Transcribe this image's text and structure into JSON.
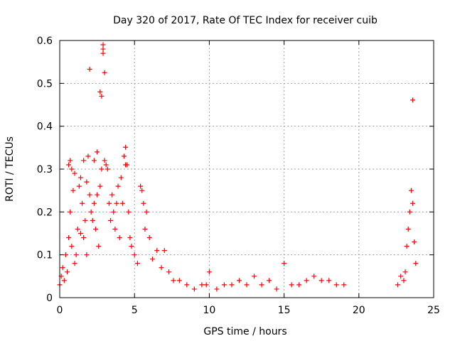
{
  "chart_data": {
    "type": "scatter",
    "title": "Day 320 of 2017, Rate Of TEC Index for receiver cuib",
    "xlabel": "GPS time / hours",
    "ylabel": "ROTI / TECUs",
    "xlim": [
      0,
      25
    ],
    "ylim": [
      0,
      0.6
    ],
    "x_ticks": [
      0,
      5,
      10,
      15,
      20,
      25
    ],
    "y_ticks": [
      0,
      0.1,
      0.2,
      0.3,
      0.4,
      0.5,
      0.6
    ],
    "x_tick_labels": [
      "0",
      "5",
      "10",
      "15",
      "20",
      "25"
    ],
    "y_tick_labels": [
      "0",
      "0.1",
      "0.2",
      "0.3",
      "0.4",
      "0.5",
      "0.6"
    ],
    "grid": true,
    "marker": "+",
    "color": "#ff0000",
    "series": [
      {
        "values": [
          [
            0.0,
            0.03
          ],
          [
            0.1,
            0.05
          ],
          [
            0.2,
            0.07
          ],
          [
            0.3,
            0.04
          ],
          [
            0.4,
            0.1
          ],
          [
            0.5,
            0.06
          ],
          [
            0.6,
            0.14
          ],
          [
            0.6,
            0.31
          ],
          [
            0.7,
            0.32
          ],
          [
            0.7,
            0.2
          ],
          [
            0.8,
            0.3
          ],
          [
            0.8,
            0.12
          ],
          [
            0.9,
            0.25
          ],
          [
            1.0,
            0.29
          ],
          [
            1.0,
            0.08
          ],
          [
            1.1,
            0.1
          ],
          [
            1.2,
            0.16
          ],
          [
            1.3,
            0.26
          ],
          [
            1.4,
            0.28
          ],
          [
            1.4,
            0.15
          ],
          [
            1.5,
            0.22
          ],
          [
            1.6,
            0.14
          ],
          [
            1.6,
            0.32
          ],
          [
            1.7,
            0.18
          ],
          [
            1.8,
            0.27
          ],
          [
            1.8,
            0.1
          ],
          [
            1.9,
            0.33
          ],
          [
            2.0,
            0.533
          ],
          [
            2.0,
            0.24
          ],
          [
            2.1,
            0.2
          ],
          [
            2.2,
            0.18
          ],
          [
            2.3,
            0.22
          ],
          [
            2.3,
            0.32
          ],
          [
            2.4,
            0.16
          ],
          [
            2.5,
            0.24
          ],
          [
            2.5,
            0.34
          ],
          [
            2.6,
            0.12
          ],
          [
            2.7,
            0.26
          ],
          [
            2.7,
            0.48
          ],
          [
            2.8,
            0.3
          ],
          [
            2.8,
            0.47
          ],
          [
            2.9,
            0.59
          ],
          [
            2.9,
            0.58
          ],
          [
            2.9,
            0.57
          ],
          [
            3.0,
            0.525
          ],
          [
            3.0,
            0.32
          ],
          [
            3.1,
            0.31
          ],
          [
            3.2,
            0.3
          ],
          [
            3.3,
            0.22
          ],
          [
            3.4,
            0.18
          ],
          [
            3.5,
            0.24
          ],
          [
            3.6,
            0.2
          ],
          [
            3.7,
            0.16
          ],
          [
            3.8,
            0.22
          ],
          [
            3.9,
            0.26
          ],
          [
            4.0,
            0.14
          ],
          [
            4.1,
            0.28
          ],
          [
            4.2,
            0.22
          ],
          [
            4.3,
            0.33
          ],
          [
            4.4,
            0.351
          ],
          [
            4.4,
            0.31
          ],
          [
            4.5,
            0.31
          ],
          [
            4.6,
            0.2
          ],
          [
            4.7,
            0.14
          ],
          [
            4.8,
            0.12
          ],
          [
            5.0,
            0.1
          ],
          [
            5.2,
            0.08
          ],
          [
            5.4,
            0.26
          ],
          [
            5.5,
            0.25
          ],
          [
            5.6,
            0.22
          ],
          [
            5.7,
            0.16
          ],
          [
            5.8,
            0.2
          ],
          [
            6.0,
            0.14
          ],
          [
            6.2,
            0.09
          ],
          [
            6.5,
            0.11
          ],
          [
            6.8,
            0.07
          ],
          [
            7.0,
            0.11
          ],
          [
            7.3,
            0.06
          ],
          [
            7.6,
            0.04
          ],
          [
            8.0,
            0.04
          ],
          [
            8.5,
            0.03
          ],
          [
            9.0,
            0.02
          ],
          [
            9.5,
            0.03
          ],
          [
            9.8,
            0.03
          ],
          [
            10.0,
            0.06
          ],
          [
            10.5,
            0.02
          ],
          [
            11.0,
            0.03
          ],
          [
            11.5,
            0.03
          ],
          [
            12.0,
            0.04
          ],
          [
            12.5,
            0.03
          ],
          [
            13.0,
            0.05
          ],
          [
            13.5,
            0.03
          ],
          [
            14.0,
            0.04
          ],
          [
            14.5,
            0.02
          ],
          [
            15.0,
            0.08
          ],
          [
            15.5,
            0.03
          ],
          [
            16.0,
            0.03
          ],
          [
            16.5,
            0.04
          ],
          [
            17.0,
            0.05
          ],
          [
            17.5,
            0.04
          ],
          [
            18.0,
            0.04
          ],
          [
            18.5,
            0.03
          ],
          [
            19.0,
            0.03
          ],
          [
            22.6,
            0.03
          ],
          [
            22.8,
            0.05
          ],
          [
            23.0,
            0.04
          ],
          [
            23.1,
            0.06
          ],
          [
            23.2,
            0.12
          ],
          [
            23.3,
            0.16
          ],
          [
            23.4,
            0.2
          ],
          [
            23.5,
            0.25
          ],
          [
            23.6,
            0.461
          ],
          [
            23.6,
            0.22
          ],
          [
            23.7,
            0.13
          ],
          [
            23.8,
            0.08
          ]
        ]
      }
    ]
  }
}
